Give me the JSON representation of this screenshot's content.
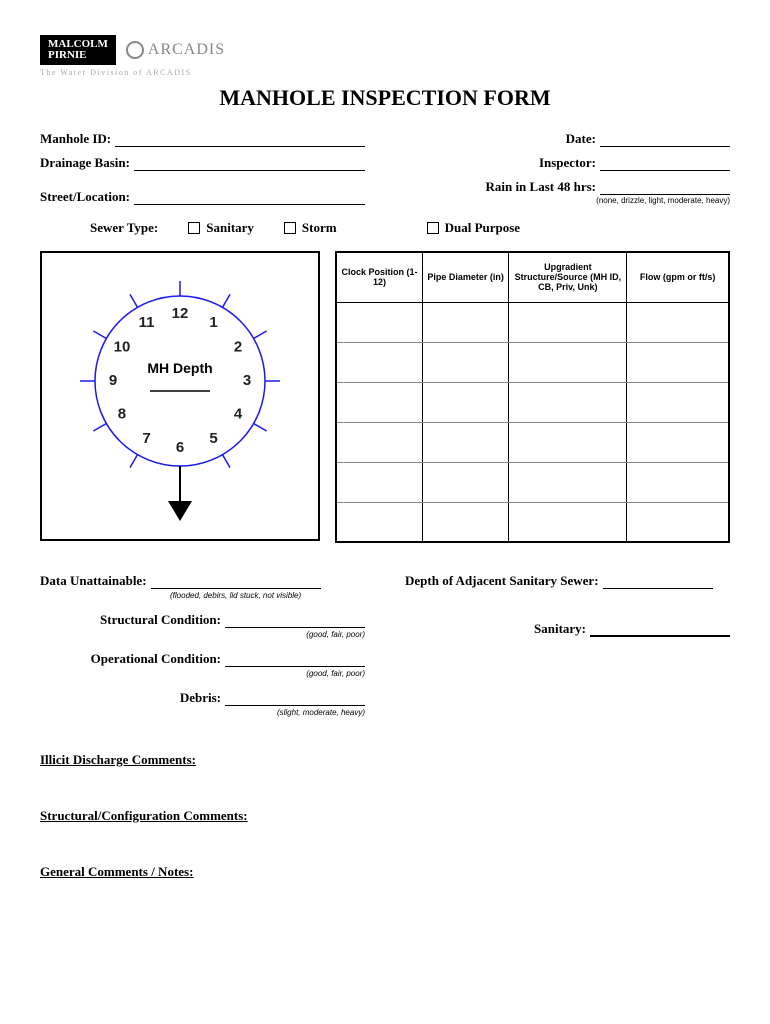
{
  "logos": {
    "mp_line1": "MALCOLM",
    "mp_line2": "PIRNIE",
    "arcadis": "ARCADIS"
  },
  "tagline": "The Water Division of ARCADIS",
  "title": "MANHOLE INSPECTION FORM",
  "fields": {
    "manhole_id": "Manhole ID:",
    "date": "Date:",
    "drainage_basin": "Drainage Basin:",
    "inspector": "Inspector:",
    "street_location": "Street/Location:",
    "rain": "Rain in Last 48 hrs:",
    "rain_hint": "(none, drizzle, light, moderate, heavy)"
  },
  "sewer": {
    "label": "Sewer Type:",
    "opt1": "Sanitary",
    "opt2": "Storm",
    "opt3": "Dual Purpose"
  },
  "clock": {
    "center_label": "MH Depth",
    "numbers": [
      "12",
      "1",
      "2",
      "3",
      "4",
      "5",
      "6",
      "7",
      "8",
      "9",
      "10",
      "11"
    ]
  },
  "table": {
    "h1": "Clock Position (1-12)",
    "h2": "Pipe Diameter (in)",
    "h3": "Upgradient Structure/Source (MH ID, CB, Priv, Unk)",
    "h4": "Flow (gpm or ft/s)",
    "rows": 6
  },
  "lower": {
    "data_unatt": "Data Unattainable:",
    "data_unatt_hint": "(flooded, debirs, lid stuck, not visible)",
    "depth_adj": "Depth of Adjacent Sanitary Sewer:",
    "struct_cond": "Structural Condition:",
    "struct_cond_hint": "(good, fair, poor)",
    "sanitary": "Sanitary:",
    "oper_cond": "Operational Condition:",
    "oper_cond_hint": "(good, fair, poor)",
    "debris": "Debris:",
    "debris_hint": "(slight, moderate, heavy)"
  },
  "sections": {
    "illicit": "Illicit Discharge Comments:",
    "structural": "Structural/Configuration Comments:",
    "general": "General Comments / Notes:"
  }
}
